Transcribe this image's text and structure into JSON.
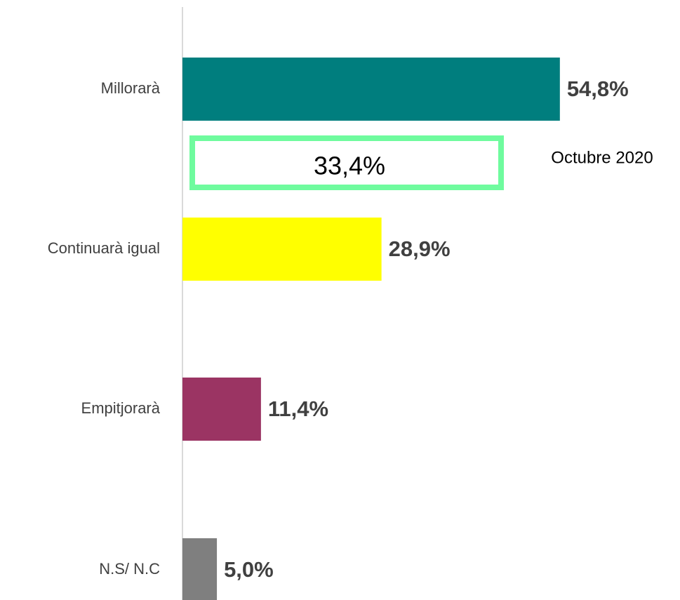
{
  "chart_data": {
    "type": "barh",
    "categories": [
      "Millorarà",
      "Continuarà igual",
      "Empitjorarà",
      "N.S/ N.C"
    ],
    "values": [
      54.8,
      28.9,
      11.4,
      5.0
    ],
    "value_labels": [
      "54,8%",
      "28,9%",
      "11,4%",
      "5,0%"
    ],
    "colors": [
      "#007e7e",
      "#ffff00",
      "#9b3463",
      "#7f7f7f"
    ],
    "xlim": [
      0,
      70
    ],
    "annotation": {
      "text": "33,4%",
      "label": "Octubre 2020",
      "color": "#6ffb9e"
    }
  }
}
